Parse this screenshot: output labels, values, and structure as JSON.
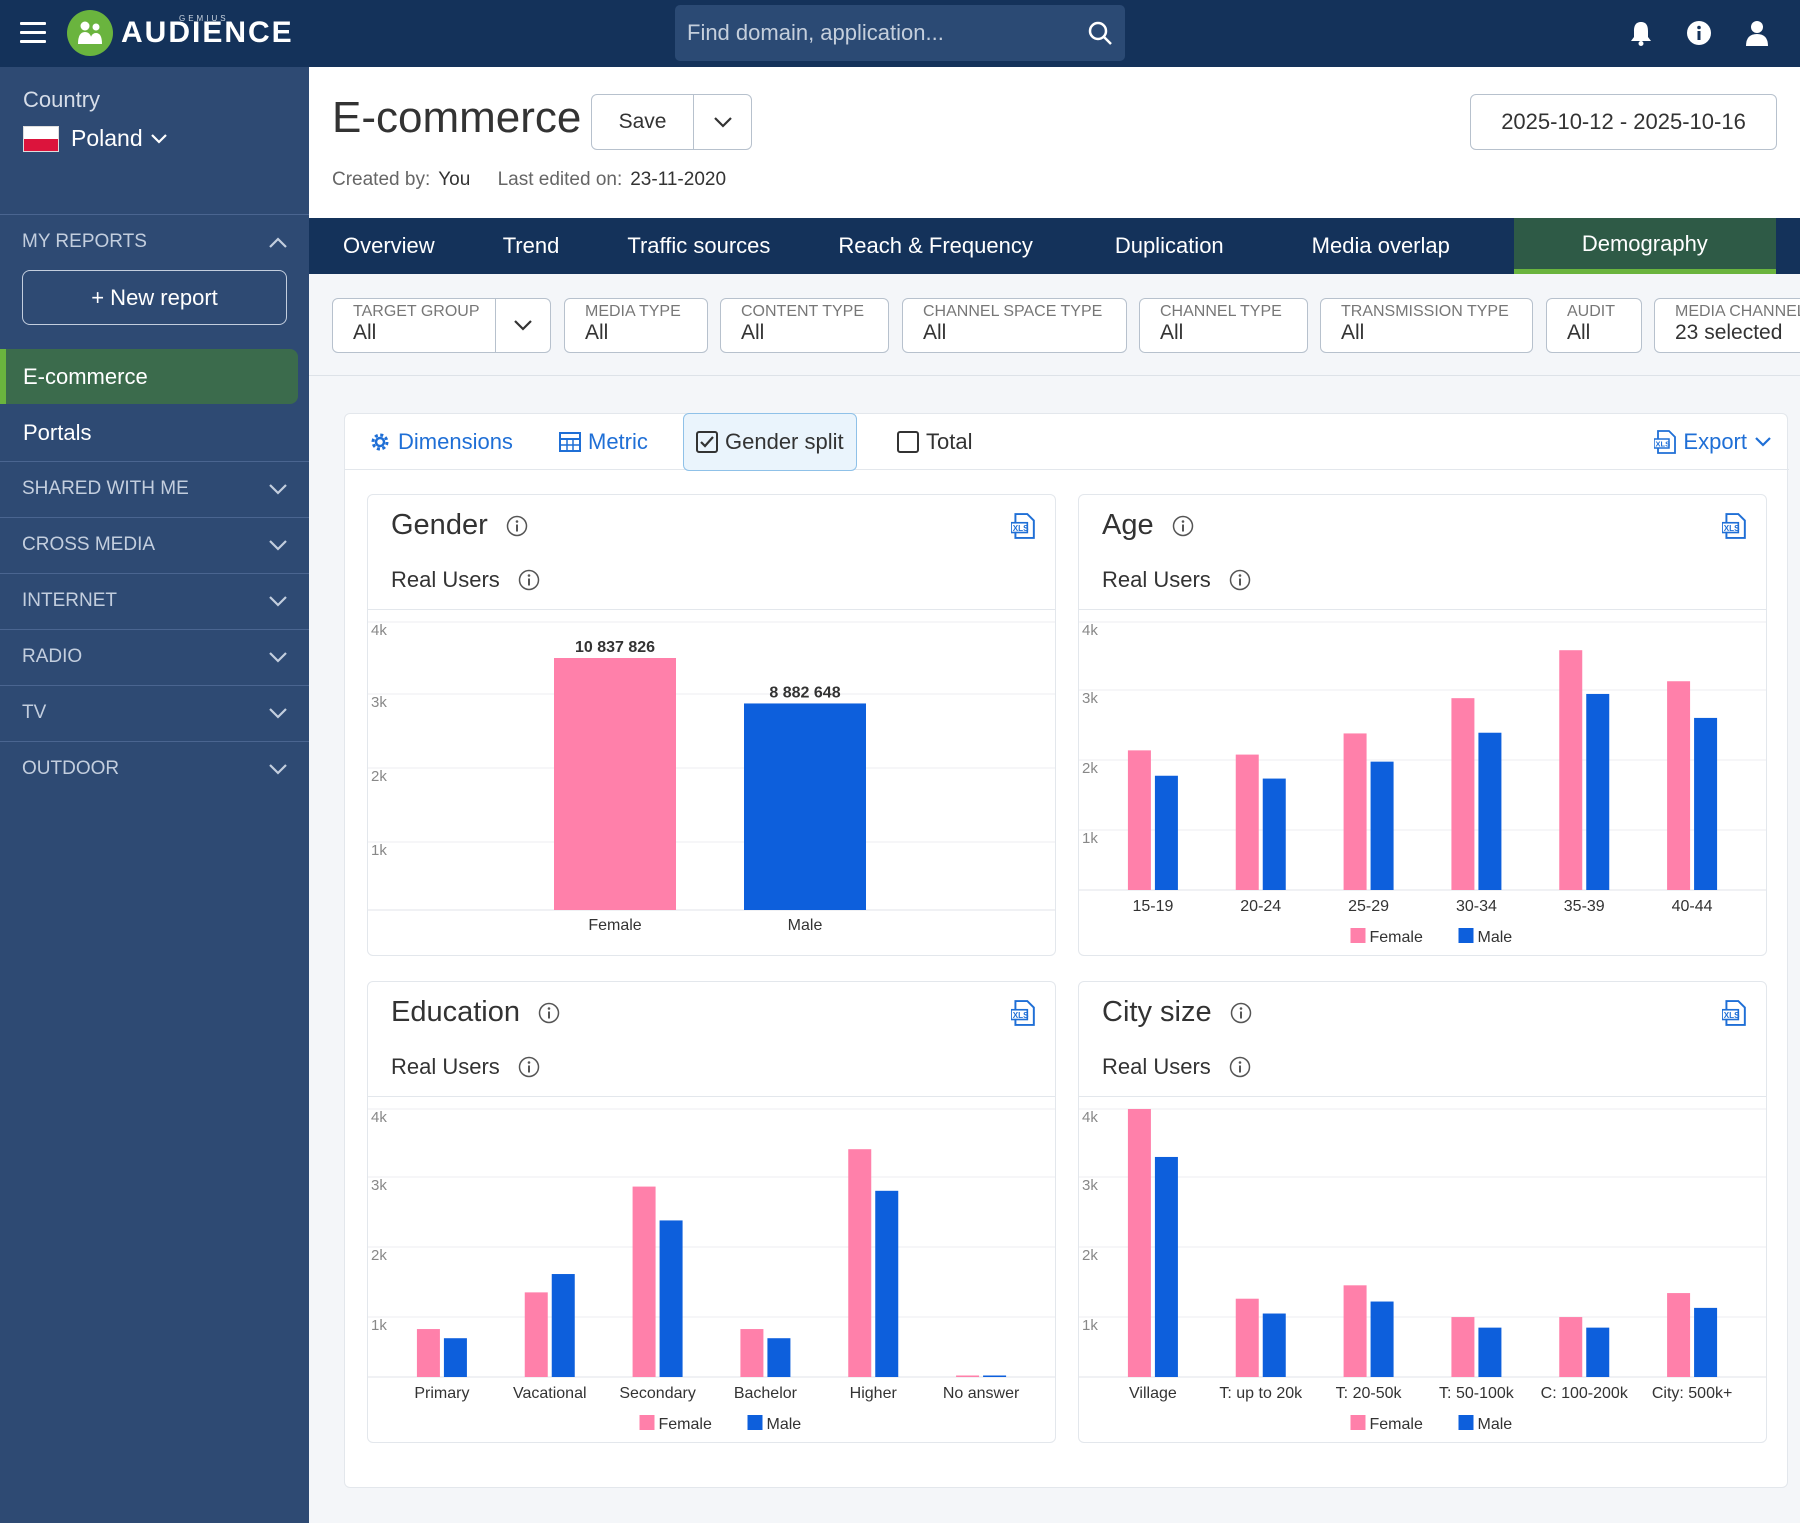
{
  "app": {
    "brand": "AUDIENCE",
    "brand_small": "GEMIUS"
  },
  "search": {
    "placeholder": "Find domain, application..."
  },
  "sidebar": {
    "country_label": "Country",
    "country_value": "Poland",
    "my_reports": "MY REPORTS",
    "new_report": "+ New report",
    "reports": [
      "E-commerce",
      "Portals"
    ],
    "sections": [
      "SHARED WITH ME",
      "CROSS MEDIA",
      "INTERNET",
      "RADIO",
      "TV",
      "OUTDOOR"
    ]
  },
  "header": {
    "title": "E-commerce",
    "save_label": "Save",
    "created_by_label": "Created by:",
    "created_by": "You",
    "last_edited_label": "Last edited on:",
    "last_edited": "23-11-2020",
    "date_range": "2025-10-12 - 2025-10-16"
  },
  "tabs": [
    "Overview",
    "Trend",
    "Traffic sources",
    "Reach & Frequency",
    "Duplication",
    "Media overlap",
    "Demography"
  ],
  "filters": [
    {
      "label": "TARGET GROUP",
      "value": "All"
    },
    {
      "label": "MEDIA TYPE",
      "value": "All"
    },
    {
      "label": "CONTENT TYPE",
      "value": "All"
    },
    {
      "label": "CHANNEL SPACE TYPE",
      "value": "All"
    },
    {
      "label": "CHANNEL TYPE",
      "value": "All"
    },
    {
      "label": "TRANSMISSION TYPE",
      "value": "All"
    },
    {
      "label": "AUDIT",
      "value": "All"
    },
    {
      "label": "MEDIA CHANNEL",
      "value": "23 selected"
    }
  ],
  "toolbar": {
    "dimensions": "Dimensions",
    "metric": "Metric",
    "gender_split": "Gender split",
    "total": "Total",
    "export": "Export"
  },
  "colors": {
    "female": "#ff80aa",
    "male": "#0d5fdc"
  },
  "cards": [
    {
      "title": "Gender",
      "subtitle": "Real Users"
    },
    {
      "title": "Age",
      "subtitle": "Real Users"
    },
    {
      "title": "Education",
      "subtitle": "Real Users"
    },
    {
      "title": "City size",
      "subtitle": "Real Users"
    }
  ],
  "chart_data": [
    {
      "type": "bar",
      "title": "Gender",
      "ylabel": "Real Users",
      "categories": [
        "Female",
        "Male"
      ],
      "values": [
        10837826,
        8882648
      ],
      "data_labels": [
        "10 837 826",
        "8 882 648"
      ],
      "yticks": [
        "4k",
        "3k",
        "2k",
        "1k"
      ],
      "grid": true
    },
    {
      "type": "bar",
      "title": "Age",
      "ylabel": "Real Users",
      "categories": [
        "15-19",
        "20-24",
        "25-29",
        "30-34",
        "35-39",
        "40-44"
      ],
      "series": [
        {
          "name": "Female",
          "values": [
            1980,
            1920,
            2220,
            2720,
            3400,
            2960
          ]
        },
        {
          "name": "Male",
          "values": [
            1620,
            1580,
            1820,
            2230,
            2780,
            2440
          ]
        }
      ],
      "yticks": [
        "4k",
        "3k",
        "2k",
        "1k"
      ],
      "ylim": [
        0,
        3800
      ],
      "legend": "bottom",
      "grid": true
    },
    {
      "type": "bar",
      "title": "Education",
      "ylabel": "Real Users",
      "categories": [
        "Primary",
        "Vacational",
        "Secondary",
        "Bachelor",
        "Higher",
        "No answer"
      ],
      "series": [
        {
          "name": "Female",
          "values": [
            680,
            1200,
            2700,
            680,
            3230,
            15
          ]
        },
        {
          "name": "Male",
          "values": [
            550,
            1460,
            2220,
            550,
            2640,
            15
          ]
        }
      ],
      "yticks": [
        "4k",
        "3k",
        "2k",
        "1k"
      ],
      "ylim": [
        0,
        3800
      ],
      "legend": "bottom",
      "grid": true
    },
    {
      "type": "bar",
      "title": "City size",
      "ylabel": "Real Users",
      "categories": [
        "Village",
        "T: up to 20k",
        "T: 20-50k",
        "T: 50-100k",
        "C: 100-200k",
        "City: 500k+"
      ],
      "series": [
        {
          "name": "Female",
          "values": [
            3800,
            1110,
            1300,
            850,
            850,
            1190
          ]
        },
        {
          "name": "Male",
          "values": [
            3120,
            900,
            1070,
            700,
            700,
            980
          ]
        }
      ],
      "yticks": [
        "4k",
        "3k",
        "2k",
        "1k"
      ],
      "ylim": [
        0,
        3800
      ],
      "legend": "bottom",
      "grid": true
    }
  ]
}
